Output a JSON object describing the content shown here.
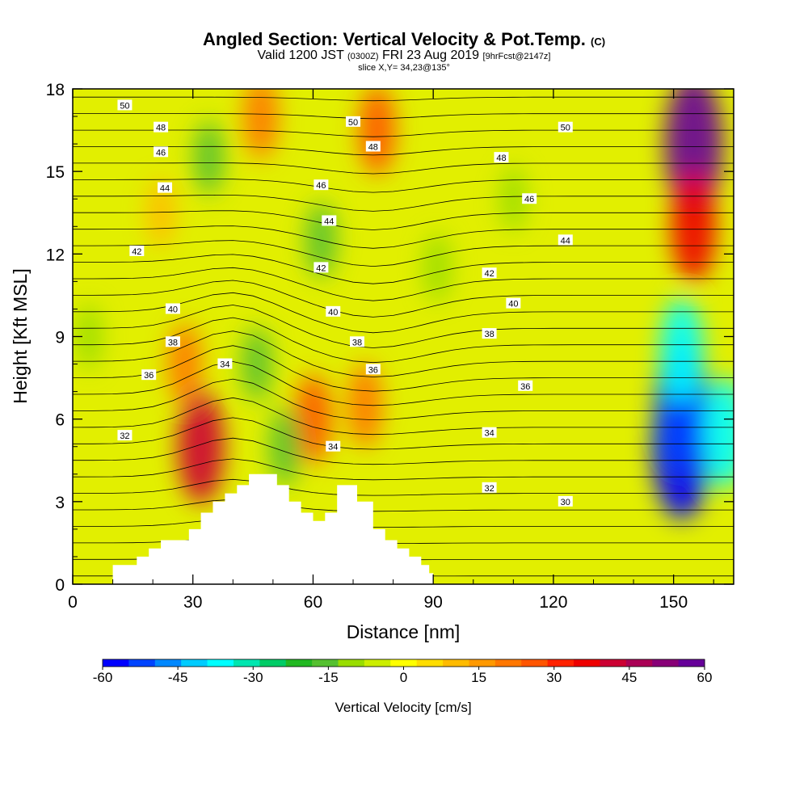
{
  "header": {
    "title_main": "Angled Section: Vertical Velocity & Pot.Temp.",
    "title_tag": "(C)",
    "valid_a": "Valid 1200 JST",
    "valid_z": "(0300Z)",
    "valid_b": "FRI 23 Aug 2019",
    "forecast": "[9hrFcst@2147z]",
    "slice": "slice X,Y= 34,23@135°"
  },
  "chart_data": {
    "type": "heatmap",
    "xlabel": "Distance [nm]",
    "ylabel": "Height [Kft MSL]",
    "xlim": [
      0,
      165
    ],
    "ylim": [
      0,
      18
    ],
    "x_ticks": [
      0,
      30,
      60,
      90,
      120,
      150
    ],
    "y_ticks": [
      0,
      3,
      6,
      9,
      12,
      15,
      18
    ],
    "colorbar": {
      "label": "Vertical Velocity [cm/s]",
      "range": [
        -60,
        60
      ],
      "ticks": [
        -60,
        -45,
        -30,
        -15,
        0,
        15,
        30,
        45,
        60
      ],
      "colors": [
        "#0000ff",
        "#0044ff",
        "#0088ff",
        "#00ccff",
        "#00ffff",
        "#00e6b0",
        "#00cc66",
        "#22b822",
        "#55c030",
        "#99dd00",
        "#ccee00",
        "#ffff00",
        "#ffdd00",
        "#ffbb00",
        "#ff9900",
        "#ff7700",
        "#ff5500",
        "#ff2200",
        "#ee0000",
        "#cc0033",
        "#aa0055",
        "#880077",
        "#660099"
      ]
    },
    "velocity_features": [
      {
        "x": 32,
        "y": 5.0,
        "value": 40
      },
      {
        "x": 28,
        "y": 8.0,
        "value": 20
      },
      {
        "x": 60,
        "y": 6.0,
        "value": 25
      },
      {
        "x": 73,
        "y": 6.5,
        "value": 22
      },
      {
        "x": 76,
        "y": 16.5,
        "value": 25
      },
      {
        "x": 47,
        "y": 17.0,
        "value": 22
      },
      {
        "x": 22,
        "y": 13.5,
        "value": 12
      },
      {
        "x": 46,
        "y": 8.0,
        "value": -15
      },
      {
        "x": 53,
        "y": 5.0,
        "value": -18
      },
      {
        "x": 62,
        "y": 12.5,
        "value": -16
      },
      {
        "x": 34,
        "y": 15.5,
        "value": -15
      },
      {
        "x": 91,
        "y": 11.5,
        "value": -12
      },
      {
        "x": 110,
        "y": 14.0,
        "value": -10
      },
      {
        "x": 4,
        "y": 9.0,
        "value": -10
      },
      {
        "x": 152,
        "y": 5.0,
        "value": -60
      },
      {
        "x": 152,
        "y": 6.5,
        "value": -50
      },
      {
        "x": 152,
        "y": 8.5,
        "value": -35
      },
      {
        "x": 163,
        "y": 5.5,
        "value": -38
      },
      {
        "x": 155,
        "y": 16.0,
        "value": 58
      },
      {
        "x": 155,
        "y": 13.0,
        "value": 38
      }
    ],
    "theta_labels": [
      {
        "x": 13,
        "y": 17.4,
        "value": "50"
      },
      {
        "x": 22,
        "y": 16.6,
        "value": "48"
      },
      {
        "x": 22,
        "y": 15.7,
        "value": "46"
      },
      {
        "x": 23,
        "y": 14.4,
        "value": "44"
      },
      {
        "x": 16,
        "y": 12.1,
        "value": "42"
      },
      {
        "x": 25,
        "y": 10.0,
        "value": "40"
      },
      {
        "x": 25,
        "y": 8.8,
        "value": "38"
      },
      {
        "x": 19,
        "y": 7.6,
        "value": "36"
      },
      {
        "x": 38,
        "y": 8.0,
        "value": "34"
      },
      {
        "x": 13,
        "y": 5.4,
        "value": "32"
      },
      {
        "x": 70,
        "y": 16.8,
        "value": "50"
      },
      {
        "x": 75,
        "y": 15.9,
        "value": "48"
      },
      {
        "x": 62,
        "y": 14.5,
        "value": "46"
      },
      {
        "x": 64,
        "y": 13.2,
        "value": "44"
      },
      {
        "x": 62,
        "y": 11.5,
        "value": "42"
      },
      {
        "x": 65,
        "y": 9.9,
        "value": "40"
      },
      {
        "x": 71,
        "y": 8.8,
        "value": "38"
      },
      {
        "x": 75,
        "y": 7.8,
        "value": "36"
      },
      {
        "x": 65,
        "y": 5.0,
        "value": "34"
      },
      {
        "x": 123,
        "y": 16.6,
        "value": "50"
      },
      {
        "x": 107,
        "y": 15.5,
        "value": "48"
      },
      {
        "x": 114,
        "y": 14.0,
        "value": "46"
      },
      {
        "x": 123,
        "y": 12.5,
        "value": "44"
      },
      {
        "x": 104,
        "y": 11.3,
        "value": "42"
      },
      {
        "x": 110,
        "y": 10.2,
        "value": "40"
      },
      {
        "x": 104,
        "y": 9.1,
        "value": "38"
      },
      {
        "x": 113,
        "y": 7.2,
        "value": "36"
      },
      {
        "x": 104,
        "y": 5.5,
        "value": "34"
      },
      {
        "x": 104,
        "y": 3.5,
        "value": "32"
      },
      {
        "x": 123,
        "y": 3.0,
        "value": "30"
      }
    ],
    "terrain": [
      [
        0,
        0
      ],
      [
        10,
        0
      ],
      [
        10,
        0.7
      ],
      [
        16,
        0.7
      ],
      [
        16,
        1.0
      ],
      [
        19,
        1.0
      ],
      [
        19,
        1.3
      ],
      [
        22,
        1.3
      ],
      [
        22,
        1.6
      ],
      [
        29,
        1.6
      ],
      [
        29,
        2.0
      ],
      [
        32,
        2.0
      ],
      [
        32,
        2.6
      ],
      [
        35,
        2.6
      ],
      [
        35,
        3.0
      ],
      [
        38,
        3.0
      ],
      [
        38,
        3.3
      ],
      [
        41,
        3.3
      ],
      [
        41,
        3.6
      ],
      [
        44,
        3.6
      ],
      [
        44,
        4.0
      ],
      [
        51,
        4.0
      ],
      [
        51,
        3.6
      ],
      [
        54,
        3.6
      ],
      [
        54,
        3.0
      ],
      [
        57,
        3.0
      ],
      [
        57,
        2.6
      ],
      [
        60,
        2.6
      ],
      [
        60,
        2.3
      ],
      [
        63,
        2.3
      ],
      [
        63,
        2.6
      ],
      [
        66,
        2.6
      ],
      [
        66,
        3.6
      ],
      [
        71,
        3.6
      ],
      [
        71,
        3.0
      ],
      [
        75,
        3.0
      ],
      [
        75,
        2.0
      ],
      [
        78,
        2.0
      ],
      [
        78,
        1.6
      ],
      [
        81,
        1.6
      ],
      [
        81,
        1.3
      ],
      [
        84,
        1.3
      ],
      [
        84,
        1.0
      ],
      [
        87,
        1.0
      ],
      [
        87,
        0.7
      ],
      [
        89,
        0.7
      ],
      [
        89,
        0.4
      ],
      [
        90,
        0.4
      ],
      [
        90,
        0
      ]
    ]
  }
}
